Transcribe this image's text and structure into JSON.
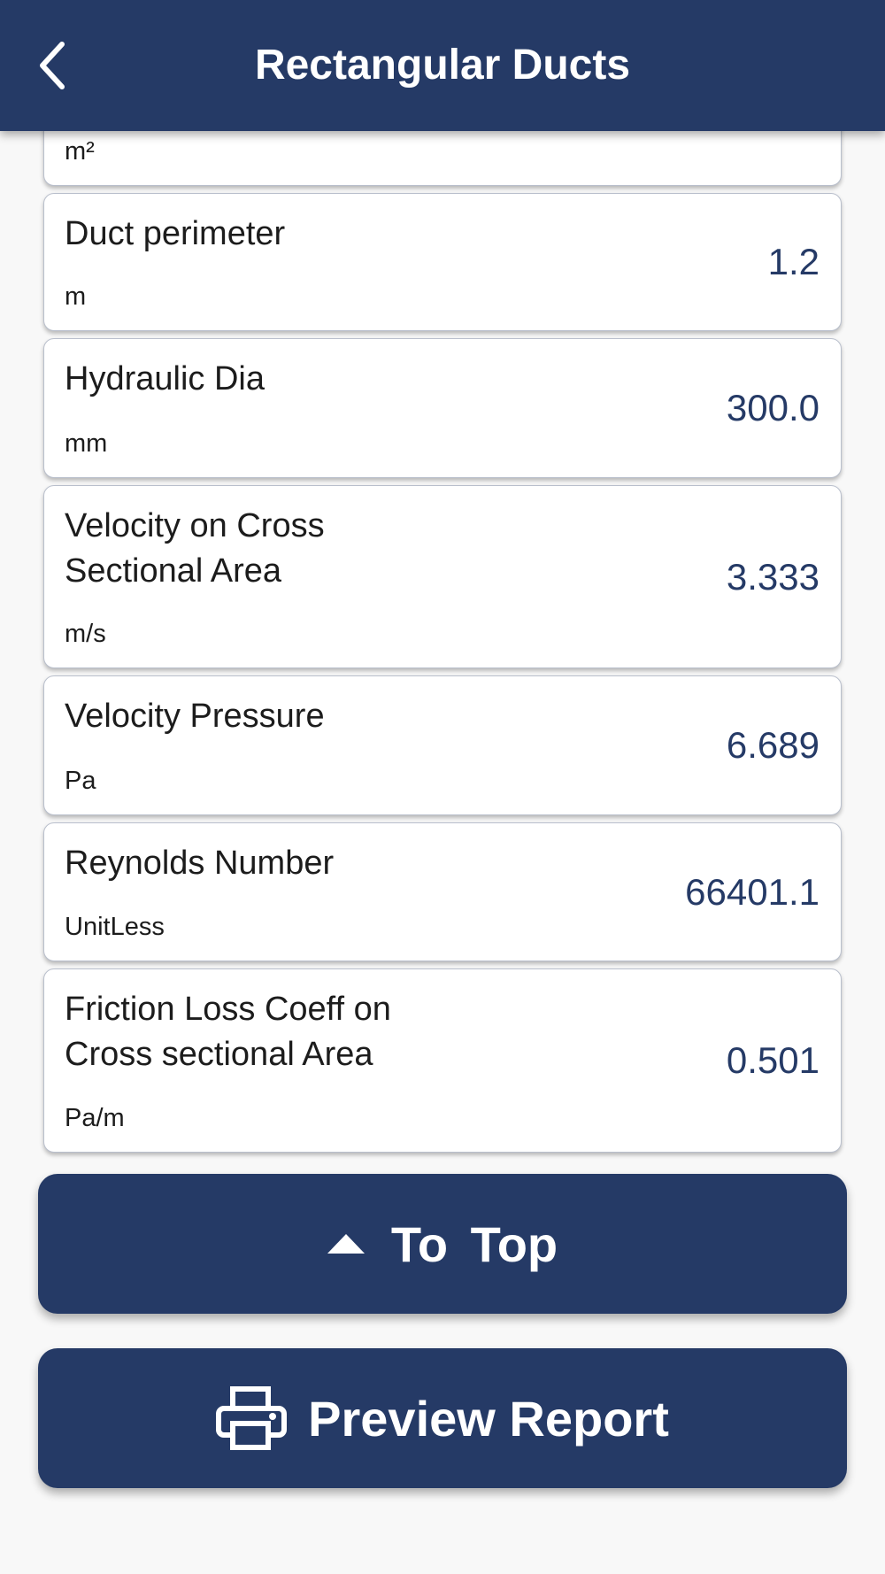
{
  "header": {
    "title": "Rectangular Ducts",
    "back_icon": "chevron-left-icon"
  },
  "results": [
    {
      "label": "",
      "unit": "m²",
      "value": ""
    },
    {
      "label": "Duct perimeter",
      "unit": "m",
      "value": "1.2"
    },
    {
      "label": "Hydraulic Dia",
      "unit": "mm",
      "value": "300.0"
    },
    {
      "label": "Velocity on Cross\nSectional Area",
      "unit": "m/s",
      "value": "3.333"
    },
    {
      "label": "Velocity Pressure",
      "unit": "Pa",
      "value": "6.689"
    },
    {
      "label": "Reynolds Number",
      "unit": "UnitLess",
      "value": "66401.1"
    },
    {
      "label": "Friction Loss Coeff on\nCross sectional Area",
      "unit": "Pa/m",
      "value": "0.501"
    }
  ],
  "buttons": {
    "to_top": "To Top",
    "preview_report": "Preview Report"
  },
  "colors": {
    "primary": "#253a66",
    "background": "#f8f8f8"
  }
}
